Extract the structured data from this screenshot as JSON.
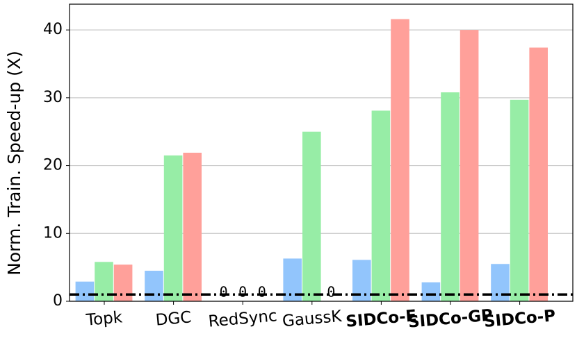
{
  "chart_data": {
    "type": "bar",
    "y_label": "Norm. Train. Speed-up (X)",
    "categories": [
      "Topk",
      "DGC",
      "RedSync",
      "GaussK",
      "SIDCo-E",
      "SIDCo-GP",
      "SIDCo-P"
    ],
    "category_colors": [
      "#000000",
      "#000000",
      "#000000",
      "#000000",
      "#ff0000",
      "#c000c0",
      "#c0c000"
    ],
    "series": [
      {
        "color": "#92c5fc",
        "values": [
          2.9,
          4.5,
          0,
          6.3,
          6.1,
          2.8,
          5.5
        ]
      },
      {
        "color": "#97eda6",
        "values": [
          5.8,
          21.5,
          0,
          25.0,
          28.1,
          30.8,
          29.7
        ]
      },
      {
        "color": "#ffa09a",
        "values": [
          5.4,
          21.9,
          0,
          0,
          41.6,
          40.0,
          37.4
        ]
      }
    ],
    "zero_label_color": "#ff0000",
    "hline": 1,
    "ylim": [
      0,
      43.8
    ],
    "yticks": [
      0,
      10,
      20,
      30,
      40
    ],
    "grid": true
  }
}
